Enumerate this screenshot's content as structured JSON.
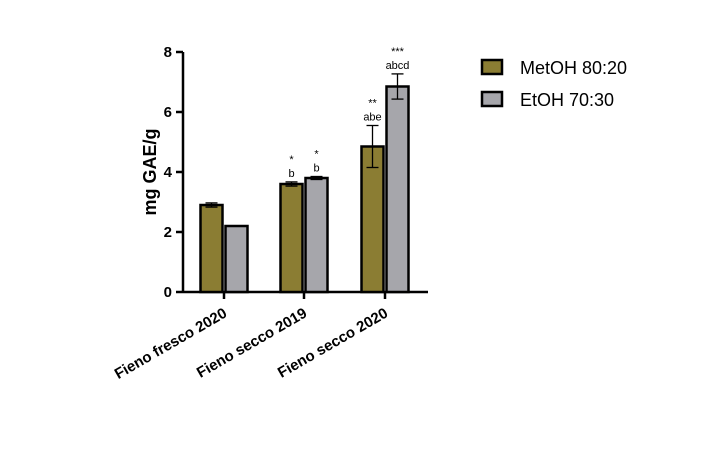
{
  "chart_data": {
    "type": "bar",
    "title": "",
    "xlabel": "",
    "ylabel": "mg GAE/g",
    "ylim": [
      0,
      8
    ],
    "yticks": [
      "0",
      "2",
      "4",
      "6",
      "8"
    ],
    "categories": [
      "Fieno fresco 2020",
      "Fieno secco 2019",
      "Fieno secco 2020"
    ],
    "series": [
      {
        "name": "MetOH 80:20",
        "color": "#8b7d33",
        "values": [
          2.9,
          3.6,
          4.85
        ],
        "errors": [
          0.07,
          0.07,
          0.7
        ],
        "letters": [
          "",
          "b",
          "abe"
        ],
        "stars": [
          "",
          "*",
          "**"
        ]
      },
      {
        "name": "EtOH 70:30",
        "color": "#a6a6ab",
        "values": [
          2.2,
          3.8,
          6.85
        ],
        "errors": [
          0.0,
          0.05,
          0.42
        ],
        "letters": [
          "",
          "b",
          "abcd"
        ],
        "stars": [
          "",
          "*",
          "***"
        ]
      }
    ],
    "legend_position": "right",
    "grid": false
  }
}
